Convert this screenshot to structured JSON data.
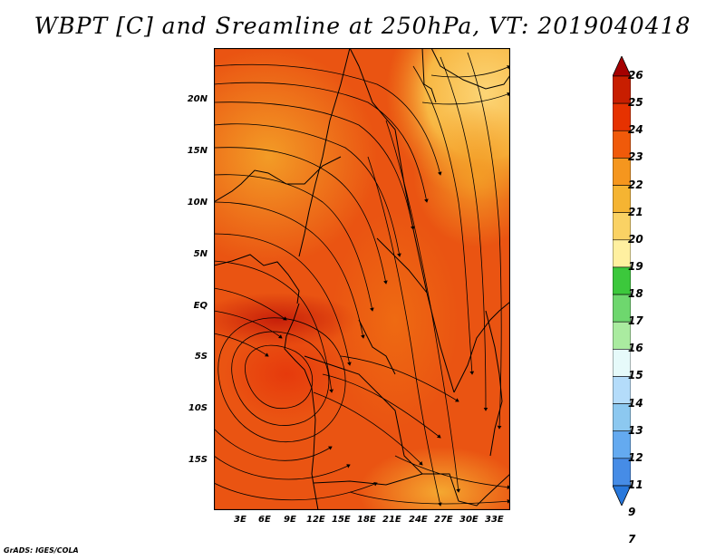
{
  "title": "WBPT [C] and Sreamline at 250hPa, VT: 2019040418",
  "credit": "GrADS: IGES/COLA",
  "map": {
    "lat_labels": [
      "20N",
      "15N",
      "10N",
      "5N",
      "EQ",
      "5S",
      "10S",
      "15S"
    ],
    "lon_labels": [
      "3E",
      "6E",
      "9E",
      "12E",
      "15E",
      "18E",
      "21E",
      "24E",
      "27E",
      "30E",
      "33E"
    ]
  },
  "colorbar": {
    "levels": [
      "26",
      "25",
      "24",
      "23",
      "22",
      "21",
      "20",
      "19",
      "18",
      "17",
      "16",
      "15",
      "14",
      "13",
      "12",
      "11",
      "9",
      "7"
    ],
    "colors": [
      "#a50000",
      "#c81e00",
      "#e63200",
      "#f05a0a",
      "#f5961e",
      "#f5b432",
      "#fad264",
      "#fff0a0",
      "#3cc83c",
      "#6ed76e",
      "#aaeba0",
      "#e6fafa",
      "#b4dcfa",
      "#8cc8f0",
      "#64aaf0",
      "#468ce6",
      "#2878dc"
    ]
  }
}
